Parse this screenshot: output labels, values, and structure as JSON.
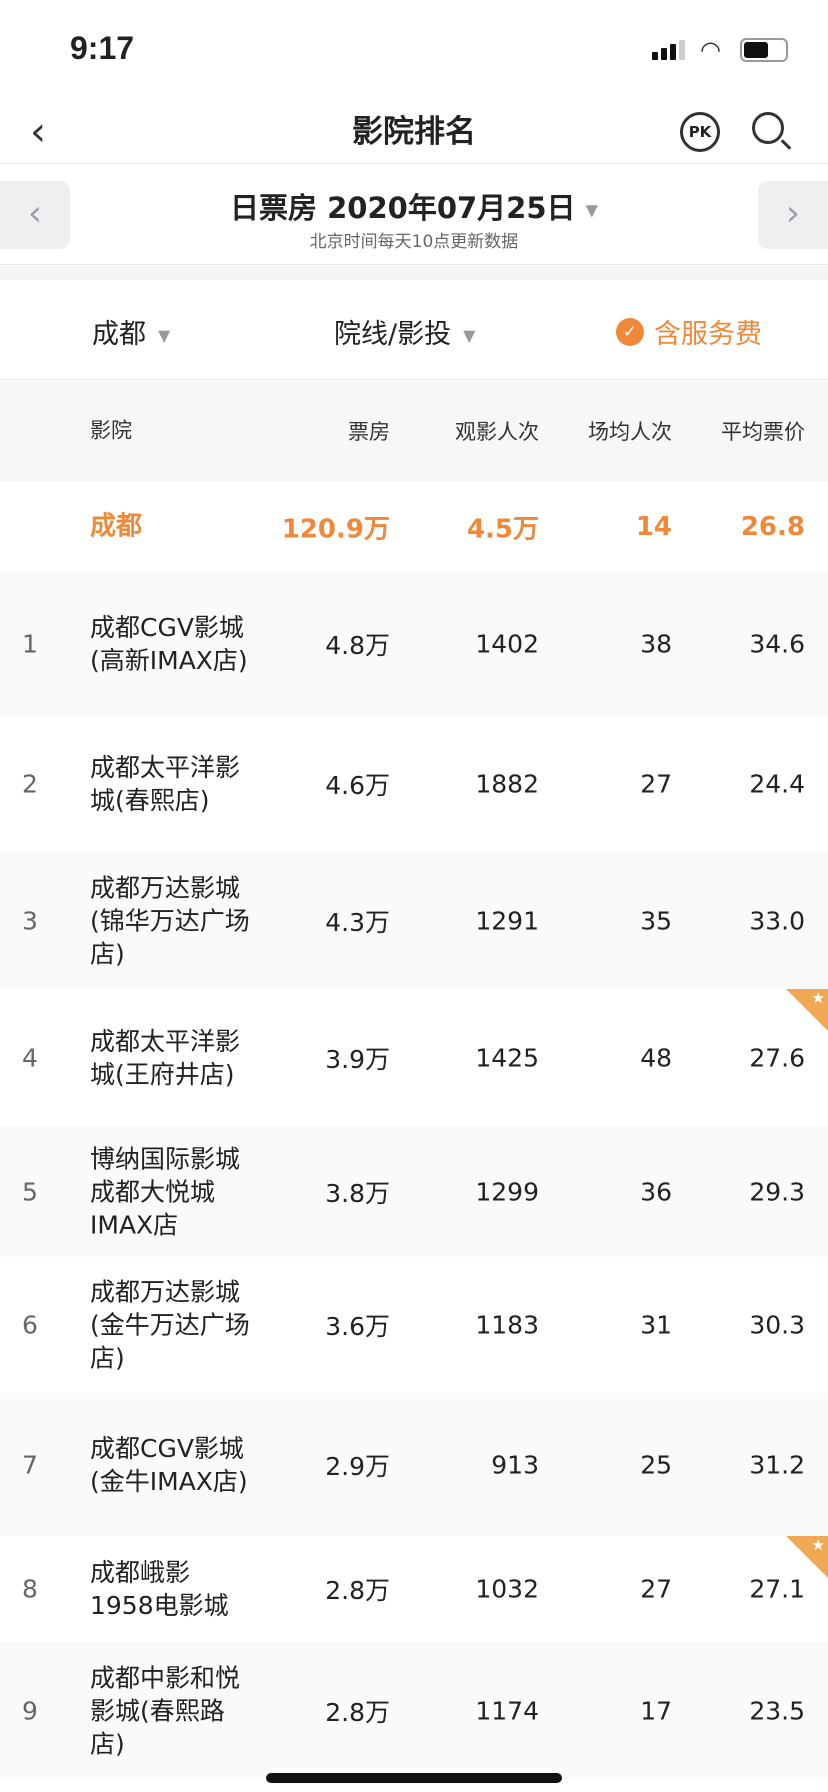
{
  "status_bar": {
    "time": "9:17"
  },
  "nav": {
    "title": "影院排名",
    "pk_label": "PK"
  },
  "date_bar": {
    "label": "日票房 2020年07月25日",
    "note": "北京时间每天10点更新数据"
  },
  "filters": {
    "city": "成都",
    "chain": "院线/影投",
    "service_fee": "含服务费",
    "service_fee_checked": true
  },
  "accent_color": "#f0883a",
  "table": {
    "headers": {
      "cinema": "影院",
      "box_office": "票房",
      "audience": "观影人次",
      "avg_per_show": "场均人次",
      "avg_price": "平均票价"
    },
    "total": {
      "name": "成都",
      "box_office": "120.9万",
      "audience": "4.5万",
      "avg_per_show": "14",
      "avg_price": "26.8"
    },
    "rows": [
      {
        "rank": "1",
        "name": "成都CGV影城(高新IMAX店)",
        "box_office": "4.8万",
        "audience": "1402",
        "avg_per_show": "38",
        "avg_price": "34.6",
        "starred": false
      },
      {
        "rank": "2",
        "name": "成都太平洋影城(春熙店)",
        "box_office": "4.6万",
        "audience": "1882",
        "avg_per_show": "27",
        "avg_price": "24.4",
        "starred": false
      },
      {
        "rank": "3",
        "name": "成都万达影城(锦华万达广场店)",
        "box_office": "4.3万",
        "audience": "1291",
        "avg_per_show": "35",
        "avg_price": "33.0",
        "starred": false
      },
      {
        "rank": "4",
        "name": "成都太平洋影城(王府井店)",
        "box_office": "3.9万",
        "audience": "1425",
        "avg_per_show": "48",
        "avg_price": "27.6",
        "starred": true
      },
      {
        "rank": "5",
        "name": "博纳国际影城成都大悦城IMAX店",
        "box_office": "3.8万",
        "audience": "1299",
        "avg_per_show": "36",
        "avg_price": "29.3",
        "starred": false
      },
      {
        "rank": "6",
        "name": "成都万达影城(金牛万达广场店)",
        "box_office": "3.6万",
        "audience": "1183",
        "avg_per_show": "31",
        "avg_price": "30.3",
        "starred": false
      },
      {
        "rank": "7",
        "name": "成都CGV影城(金牛IMAX店)",
        "box_office": "2.9万",
        "audience": "913",
        "avg_per_show": "25",
        "avg_price": "31.2",
        "starred": false
      },
      {
        "rank": "8",
        "name": "成都峨影1958电影城",
        "box_office": "2.8万",
        "audience": "1032",
        "avg_per_show": "27",
        "avg_price": "27.1",
        "starred": true
      },
      {
        "rank": "9",
        "name": "成都中影和悦影城(春熙路店)",
        "box_office": "2.8万",
        "audience": "1174",
        "avg_per_show": "17",
        "avg_price": "23.5",
        "starred": false
      }
    ]
  }
}
